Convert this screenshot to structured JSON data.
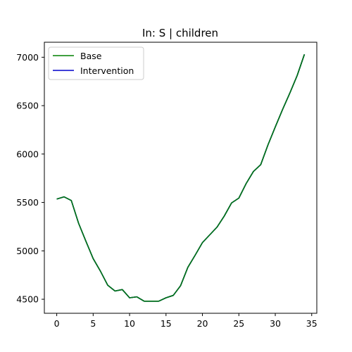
{
  "chart_data": {
    "type": "line",
    "title": "In: S | children",
    "xlabel": "",
    "ylabel": "",
    "xlim": [
      -1.7,
      35.7
    ],
    "ylim": [
      4355,
      7155
    ],
    "xticks": [
      0,
      5,
      10,
      15,
      20,
      25,
      30,
      35
    ],
    "yticks": [
      4500,
      5000,
      5500,
      6000,
      6500,
      7000
    ],
    "grid": false,
    "legend_position": "top-left",
    "x": [
      0,
      1,
      2,
      3,
      4,
      5,
      6,
      7,
      8,
      9,
      10,
      11,
      12,
      13,
      14,
      15,
      16,
      17,
      18,
      19,
      20,
      21,
      22,
      23,
      24,
      25,
      26,
      27,
      28,
      29,
      30,
      31,
      32,
      33,
      34
    ],
    "series": [
      {
        "name": "Base",
        "color": "#008000",
        "values": [
          5535,
          5558,
          5520,
          5285,
          5100,
          4920,
          4790,
          4645,
          4585,
          4600,
          4515,
          4525,
          4480,
          4480,
          4480,
          4515,
          4540,
          4640,
          4830,
          4955,
          5085,
          5165,
          5245,
          5360,
          5495,
          5545,
          5695,
          5820,
          5890,
          6095,
          6280,
          6460,
          6630,
          6810,
          7030
        ]
      },
      {
        "name": "Intervention",
        "color": "#0000cc",
        "values": [
          5535,
          5558,
          5520,
          5285,
          5100,
          4920,
          4790,
          4645,
          4585,
          4600,
          4515,
          4525,
          4480,
          4480,
          4480,
          4515,
          4540,
          4640,
          4830,
          4955,
          5085,
          5165,
          5245,
          5360,
          5495,
          5545,
          5695,
          5820,
          5890,
          6095,
          6280,
          6460,
          6630,
          6810,
          7030
        ]
      }
    ]
  }
}
